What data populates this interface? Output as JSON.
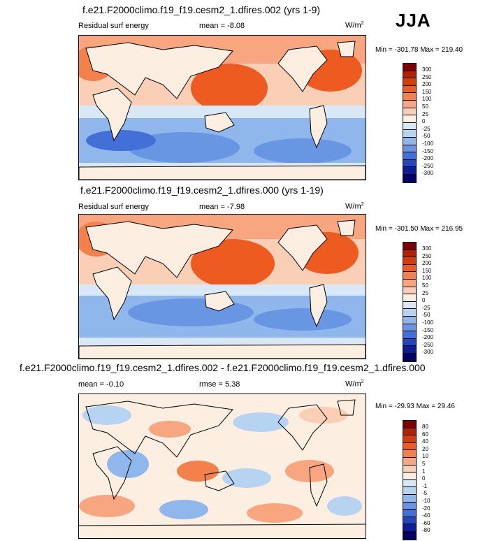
{
  "season": "JJA",
  "unit_main": "W/m",
  "unit_sup": "2",
  "panel1": {
    "title": "f.e21.F2000climo.f19_f19.cesm2_1.dfires.002 (yrs 1-9)",
    "variable": "Residual surf energy",
    "mean": "mean =  -8.08",
    "minmax": "Min = -301.78 Max = 219.40"
  },
  "panel2": {
    "title": "f.e21.F2000climo.f19_f19.cesm2_1.dfires.000 (yrs 1-19)",
    "variable": "Residual surf energy",
    "mean": "mean =  -7.98",
    "minmax": "Min = -301.50 Max = 216.95"
  },
  "panel3": {
    "title": "f.e21.F2000climo.f19_f19.cesm2_1.dfires.002 - f.e21.F2000climo.f19_f19.cesm2_1.dfires.000",
    "mean": "mean =  -0.10",
    "rmse": "rmse =   5.38",
    "minmax": "Min = -29.93 Max =  29.46"
  },
  "colorbar_main": {
    "levels": [
      "300",
      "250",
      "200",
      "150",
      "100",
      "50",
      "25",
      "0",
      "-25",
      "-50",
      "-100",
      "-150",
      "-200",
      "-250",
      "-300"
    ],
    "colors": [
      "#7f0000",
      "#b22000",
      "#d63c06",
      "#ee5b20",
      "#f4804b",
      "#f8a67f",
      "#fbcfb5",
      "#fdeee2",
      "#d9e8f7",
      "#b7d3f2",
      "#8fb7ec",
      "#6896e3",
      "#4270d6",
      "#2047bd",
      "#0a1e99",
      "#000066"
    ]
  },
  "colorbar_diff": {
    "levels": [
      "80",
      "60",
      "40",
      "20",
      "10",
      "5",
      "1",
      "0",
      "-1",
      "-5",
      "-10",
      "-20",
      "-40",
      "-60",
      "-80"
    ],
    "colors": [
      "#7f0000",
      "#b22000",
      "#d63c06",
      "#ee5b20",
      "#f4804b",
      "#f8a67f",
      "#fbcfb5",
      "#fdeee2",
      "#d9e8f7",
      "#b7d3f2",
      "#8fb7ec",
      "#6896e3",
      "#4270d6",
      "#2047bd",
      "#0a1e99",
      "#000066"
    ]
  }
}
